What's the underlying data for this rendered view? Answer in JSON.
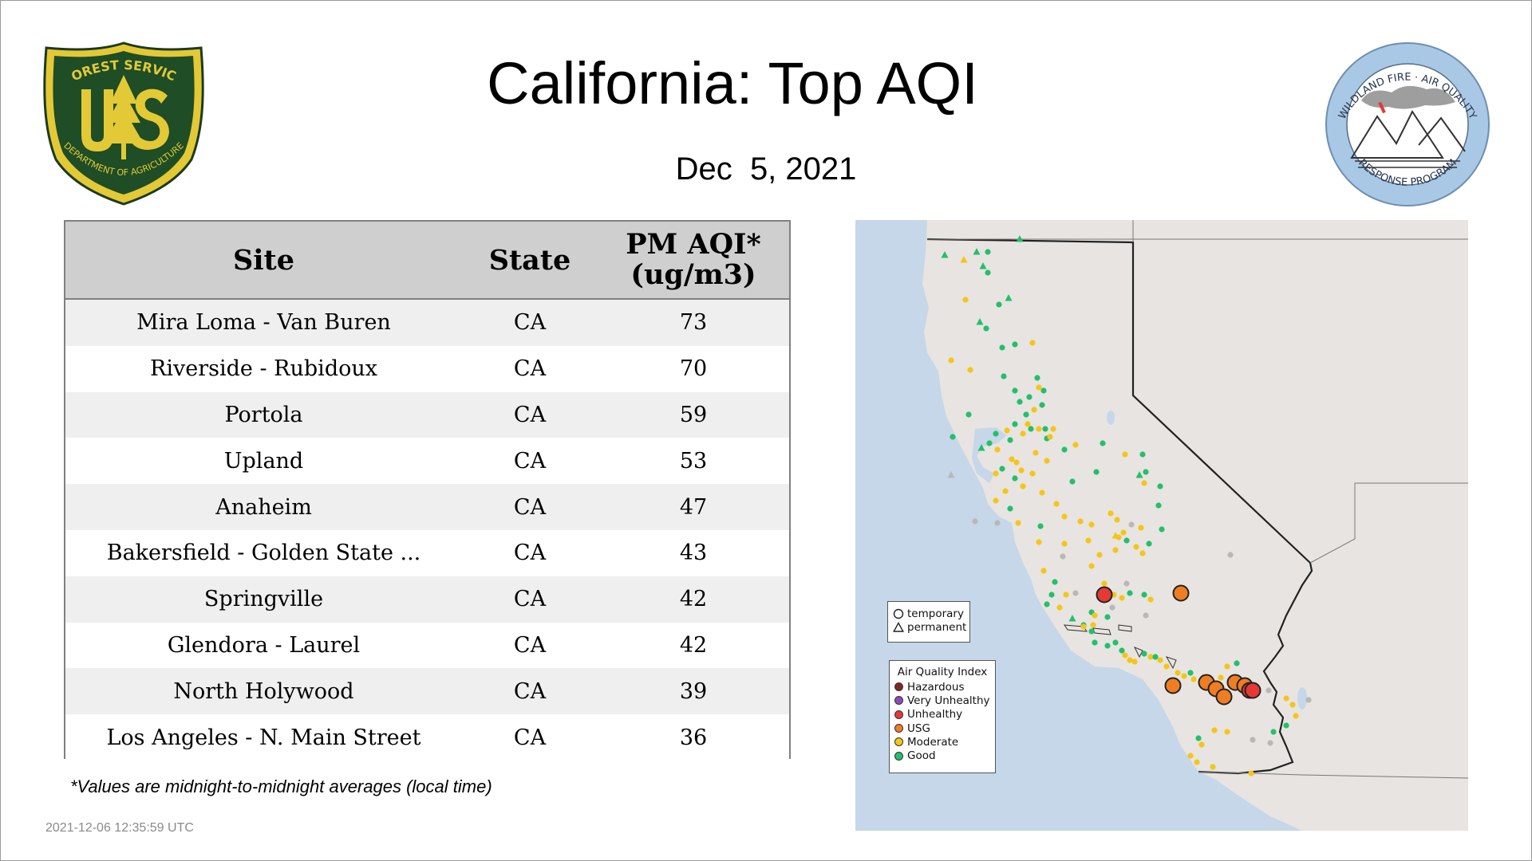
{
  "header": {
    "title": "California: Top AQI",
    "date": "Dec  5, 2021"
  },
  "logos": {
    "usfs": {
      "top_text": "FOREST SERVICE",
      "letters": "U S",
      "bottom_text": "DEPARTMENT OF AGRICULTURE"
    },
    "wfaq": {
      "top_text": "WILDLAND FIRE · AIR QUALITY",
      "bottom_text": "RESPONSE PROGRAM"
    }
  },
  "table": {
    "headers": {
      "site": "Site",
      "state": "State",
      "pm_line1": "PM AQI*",
      "pm_line2": "(ug/m3)"
    },
    "rows": [
      {
        "site": "Mira Loma - Van Buren",
        "state": "CA",
        "pm": "73"
      },
      {
        "site": "Riverside - Rubidoux",
        "state": "CA",
        "pm": "70"
      },
      {
        "site": "Portola",
        "state": "CA",
        "pm": "59"
      },
      {
        "site": "Upland",
        "state": "CA",
        "pm": "53"
      },
      {
        "site": "Anaheim",
        "state": "CA",
        "pm": "47"
      },
      {
        "site": "Bakersfield - Golden State ...",
        "state": "CA",
        "pm": "43"
      },
      {
        "site": "Springville",
        "state": "CA",
        "pm": "42"
      },
      {
        "site": "Glendora - Laurel",
        "state": "CA",
        "pm": "42"
      },
      {
        "site": "North Holywood",
        "state": "CA",
        "pm": "39"
      },
      {
        "site": "Los Angeles - N. Main Street",
        "state": "CA",
        "pm": "36"
      }
    ]
  },
  "footnote": "*Values are midnight-to-midnight averages (local time)",
  "timestamp": "2021-12-06 12:35:59 UTC",
  "map": {
    "legend_shape": {
      "temporary": "temporary",
      "permanent": "permanent"
    },
    "legend_aqi": {
      "title": "Air Quality Index",
      "items": [
        {
          "label": "Hazardous",
          "color": "#7e2a22"
        },
        {
          "label": "Very Unhealthy",
          "color": "#8e4cb0"
        },
        {
          "label": "Unhealthy",
          "color": "#e53935"
        },
        {
          "label": "USG",
          "color": "#ef7d22"
        },
        {
          "label": "Moderate",
          "color": "#f5c518"
        },
        {
          "label": "Good",
          "color": "#22c06a"
        }
      ]
    },
    "colors": {
      "good": "#22c06a",
      "moderate": "#f5c518",
      "usg": "#ef7d22",
      "unhealthy": "#e53935",
      "missing": "#b8b8b8"
    }
  }
}
